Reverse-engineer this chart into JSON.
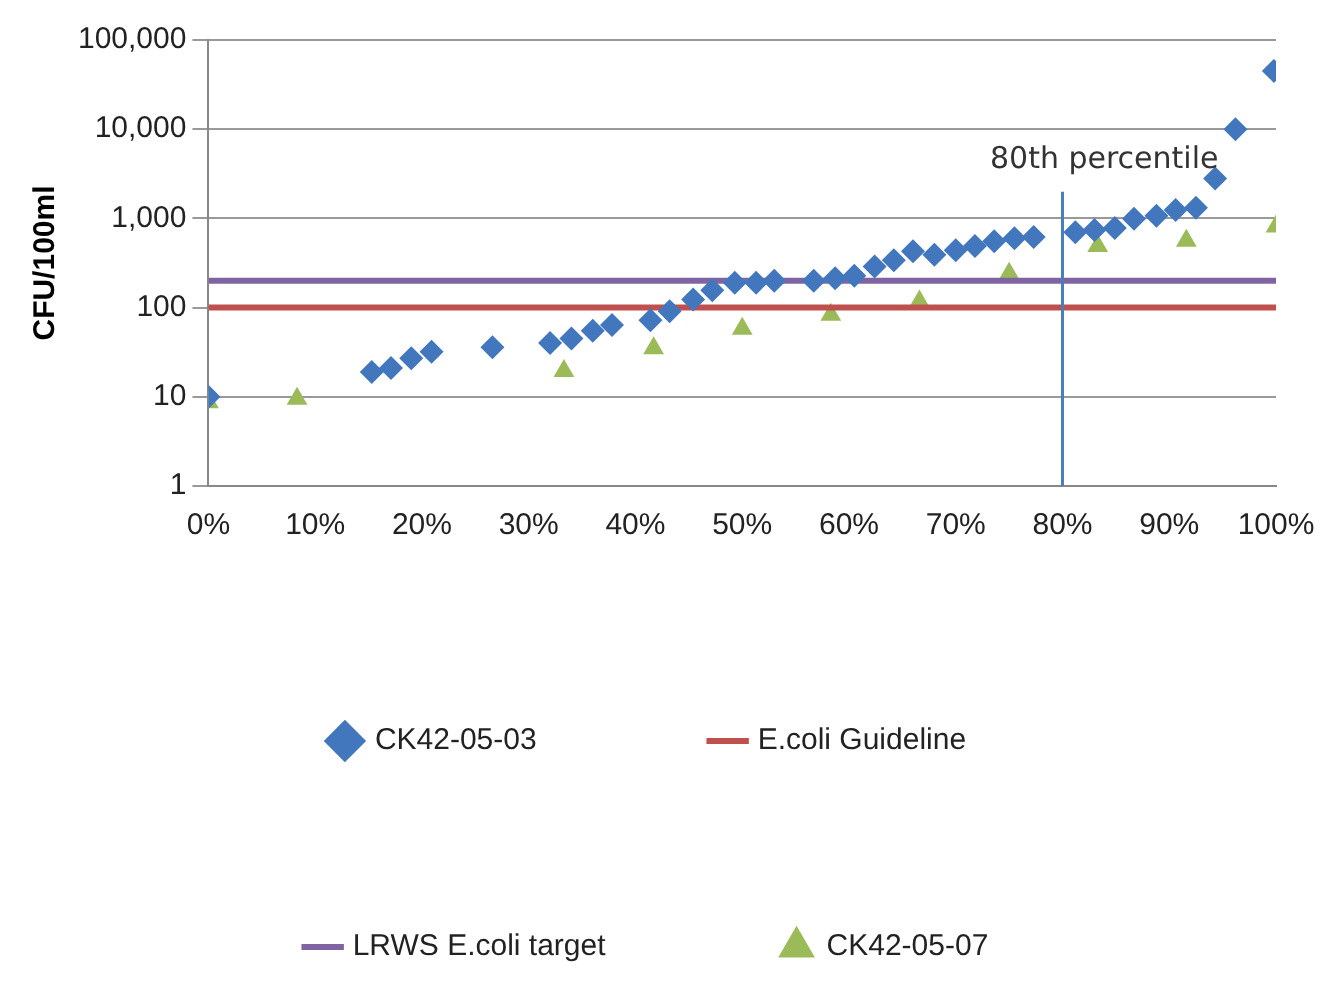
{
  "chart_data": {
    "type": "scatter",
    "ylabel": "CFU/100ml",
    "log": "y",
    "grid": "y",
    "legend": "bottom",
    "xlim": [
      0,
      100
    ],
    "xticks": [
      {
        "value": 0,
        "label": "0%"
      },
      {
        "value": 10,
        "label": "10%"
      },
      {
        "value": 20,
        "label": "20%"
      },
      {
        "value": 30,
        "label": "30%"
      },
      {
        "value": 40,
        "label": "40%"
      },
      {
        "value": 50,
        "label": "50%"
      },
      {
        "value": 60,
        "label": "60%"
      },
      {
        "value": 70,
        "label": "70%"
      },
      {
        "value": 80,
        "label": "80%"
      },
      {
        "value": 90,
        "label": "90%"
      },
      {
        "value": 100,
        "label": "100%"
      }
    ],
    "ylim": [
      1,
      100000
    ],
    "yticks": [
      1,
      10,
      100,
      {
        "value": 1000,
        "label": "1,000"
      },
      {
        "value": 10000,
        "label": "10,000"
      },
      {
        "value": 100000,
        "label": "100,000"
      }
    ],
    "series": [
      {
        "name": "CK42-05-03",
        "color": "#4377bd",
        "marker": "diamond",
        "x": [
          0,
          15.3,
          17.1,
          19,
          20.9,
          26.6,
          32,
          34,
          36,
          37.8,
          41.4,
          43.2,
          45.4,
          47.2,
          49.3,
          51.3,
          53,
          56.7,
          58.7,
          60.5,
          62.4,
          64.2,
          66,
          68,
          70,
          71.8,
          73.6,
          75.5,
          77.3,
          81.2,
          83,
          84.9,
          86.7,
          88.8,
          90.6,
          92.5,
          94.3,
          96.2,
          99.8
        ],
        "values": [
          10,
          19,
          21,
          27,
          32,
          36,
          40,
          45,
          55,
          64,
          72,
          91,
          123,
          156,
          190,
          190,
          200,
          200,
          213,
          228,
          289,
          340,
          427,
          392,
          440,
          490,
          553,
          600,
          620,
          700,
          740,
          780,
          990,
          1070,
          1240,
          1320,
          2800,
          10000,
          45000
        ]
      },
      {
        "name": "E.coli Guideline",
        "type": "line",
        "color": "#c0504d",
        "marker": "none",
        "x": [
          0,
          100
        ],
        "values": [
          100,
          100
        ]
      },
      {
        "name": "LRWS E.coli target",
        "type": "line",
        "color": "#8064a2",
        "marker": "none",
        "x": [
          0,
          100
        ],
        "values": [
          200,
          200
        ]
      },
      {
        "name": "CK42-05-07",
        "color": "#9bbb59",
        "marker": "triangle",
        "x": [
          0,
          8.3,
          33.3,
          41.7,
          50,
          58.3,
          66.6,
          75,
          83.3,
          91.6,
          100
        ],
        "values": [
          8.7,
          9.5,
          19.5,
          35,
          58,
          83,
          117,
          240,
          490,
          560,
          810
        ]
      }
    ],
    "ref_lines": [
      {
        "axis": "x",
        "value": 80,
        "label": "80th percentile",
        "color": "#4a7ebb"
      }
    ]
  }
}
